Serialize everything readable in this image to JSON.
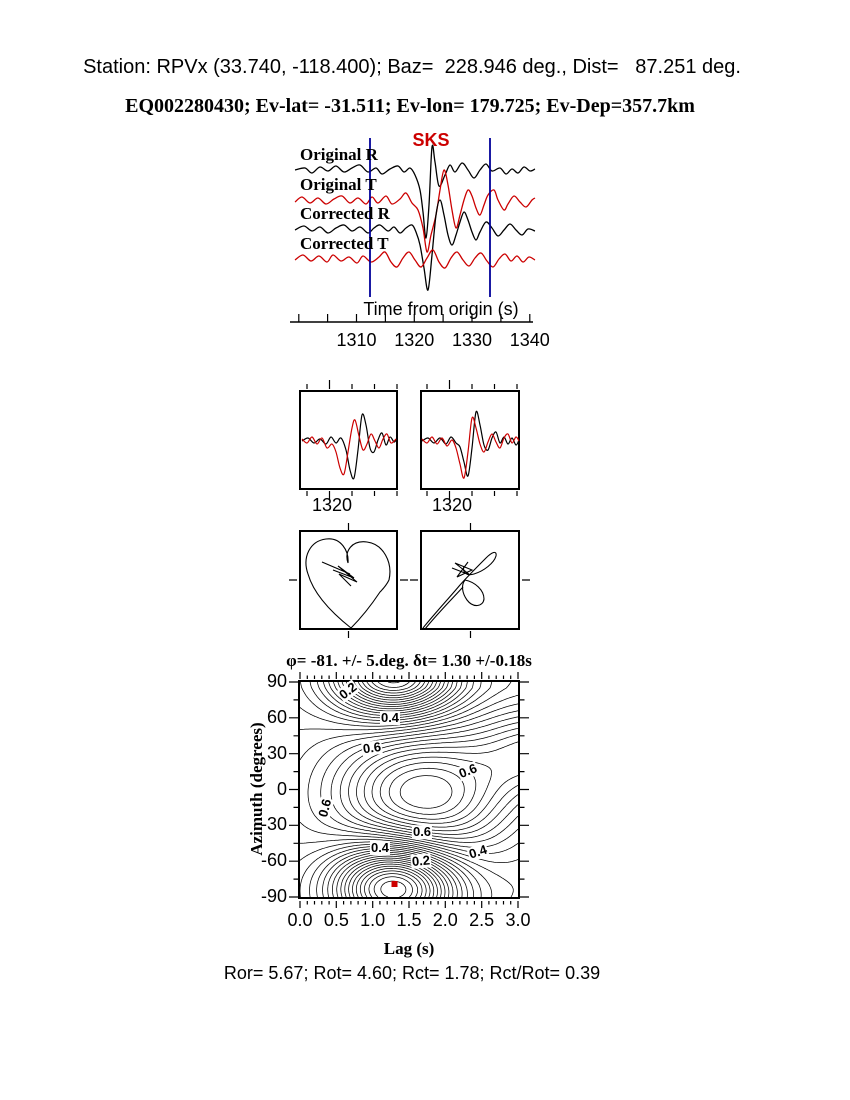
{
  "header": {
    "line1": "Station: RPVx (33.740, -118.400); Baz=  228.946 deg., Dist=   87.251 deg.",
    "line2": "EQ002280430; Ev-lat= -31.511; Ev-lon= 179.725; Ev-Dep=357.7km",
    "station": "RPVx",
    "station_lat": 33.74,
    "station_lon": -118.4,
    "baz_deg": 228.946,
    "dist_deg": 87.251,
    "event_id": "EQ002280430",
    "ev_lat": -31.511,
    "ev_lon": 179.725,
    "ev_dep_km": 357.7
  },
  "waveforms": {
    "phase_label": "SKS",
    "trace_labels": [
      "Original R",
      "Original T",
      "Corrected R",
      "Corrected T"
    ],
    "trace_colors": [
      "#000000",
      "#cc0000",
      "#000000",
      "#cc0000"
    ],
    "axis_label": "Time from origin (s)",
    "time_ticks": [
      1310,
      1320,
      1330,
      1340
    ],
    "window_line_color": "#000099"
  },
  "small_panels": {
    "tick_labels": [
      "1320",
      "1320"
    ]
  },
  "contour": {
    "title": "φ= -81. +/- 5.deg. δt= 1.30 +/-0.18s",
    "ylabel": "Azimuth (degrees)",
    "xlabel": "Lag (s)",
    "y_ticks": [
      90,
      60,
      30,
      0,
      -30,
      -60,
      -90
    ],
    "x_ticks": [
      "0.0",
      "0.5",
      "1.0",
      "1.5",
      "2.0",
      "2.5",
      "3.0"
    ],
    "inline_labels": [
      "0.2",
      "0.4",
      "0.6",
      "0.6",
      "0.6",
      "0.6",
      "0.4",
      "0.2",
      "0.4"
    ],
    "best_fit": {
      "lag_s": 1.3,
      "azimuth_deg": -81
    },
    "marker_color": "#cc0000"
  },
  "footer": {
    "text": "Ror= 5.67; Rot= 4.60; Rct= 1.78; Rct/Rot= 0.39",
    "Ror": 5.67,
    "Rot": 4.6,
    "Rct": 1.78,
    "Rct_over_Rot": 0.39
  },
  "colors": {
    "accent_red": "#cc0000",
    "window_blue": "#000099"
  },
  "chart_data": [
    {
      "type": "line",
      "id": "waveform-traces",
      "series": [
        {
          "name": "Original R",
          "color": "#000000"
        },
        {
          "name": "Original T",
          "color": "#cc0000"
        },
        {
          "name": "Corrected R",
          "color": "#000000"
        },
        {
          "name": "Corrected T",
          "color": "#cc0000"
        }
      ],
      "xlabel": "Time from origin (s)",
      "x_ticks": [
        1310,
        1320,
        1330,
        1340
      ],
      "x_range": [
        1299,
        1341
      ],
      "annotations": [
        {
          "text": "SKS",
          "x": 1322
        }
      ],
      "analysis_window_s": [
        1312.5,
        1333.5
      ]
    },
    {
      "type": "line",
      "id": "fast-slow-comparison",
      "panels": [
        {
          "x_tick": 1320
        },
        {
          "x_tick": 1320
        }
      ],
      "note": "black and red pulses offset in left panel, aligned in right panel"
    },
    {
      "type": "scatter",
      "id": "particle-motion",
      "panels": 2
    },
    {
      "type": "heatmap",
      "id": "splitting-error-surface",
      "title": "φ= -81. +/- 5.deg. δt= 1.30 +/-0.18s",
      "xlabel": "Lag (s)",
      "ylabel": "Azimuth (degrees)",
      "x_range": [
        0,
        3
      ],
      "y_range": [
        -90,
        90
      ],
      "x_ticks": [
        0.0,
        0.5,
        1.0,
        1.5,
        2.0,
        2.5,
        3.0
      ],
      "y_ticks": [
        90,
        60,
        30,
        0,
        -30,
        -60,
        -90
      ],
      "labeled_contour_levels": [
        0.2,
        0.4,
        0.6
      ],
      "best_fit_point": {
        "lag_s": 1.3,
        "azimuth_deg": -81
      },
      "phi_deg": -81,
      "phi_err_deg": 5,
      "dt_s": 1.3,
      "dt_err_s": 0.18
    }
  ]
}
